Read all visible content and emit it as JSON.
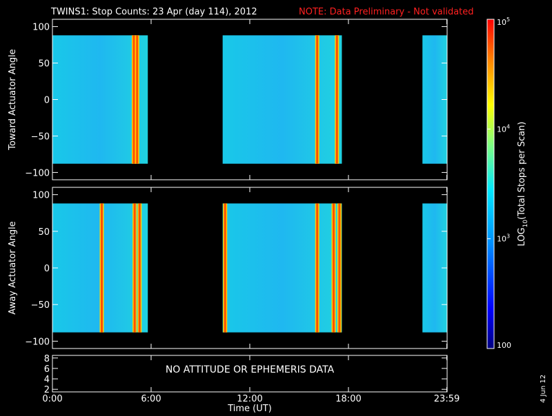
{
  "page": {
    "title": "TWINS1: Stop Counts: 23 Apr (day 114), 2012",
    "note": "NOTE: Data Preliminary - Not validated",
    "date_stamp": "4 Jun 12",
    "no_data_message": "NO ATTITUDE OR EPHEMERIS DATA"
  },
  "chart_data": [
    {
      "type": "heatmap",
      "panel": "toward",
      "ylabel": "Toward Actuator Angle",
      "ylim": [
        -110,
        110
      ],
      "yticks": [
        "100",
        "50",
        "0",
        "−50",
        "−100"
      ],
      "ytick_values": [
        100,
        50,
        0,
        -50,
        -100
      ],
      "data_y_range": [
        -88,
        88
      ],
      "data_segments_hours": [
        [
          0.0,
          5.8
        ],
        [
          10.35,
          17.6
        ],
        [
          22.5,
          24.0
        ]
      ],
      "high_count_bands_hours": [
        4.95,
        5.15,
        16.1,
        17.3
      ]
    },
    {
      "type": "heatmap",
      "panel": "away",
      "ylabel": "Away Actuator Angle",
      "ylim": [
        -110,
        110
      ],
      "yticks": [
        "100",
        "50",
        "0",
        "−50",
        "−100"
      ],
      "ytick_values": [
        100,
        50,
        0,
        -50,
        -100
      ],
      "data_y_range": [
        -88,
        88
      ],
      "data_segments_hours": [
        [
          0.0,
          5.8
        ],
        [
          10.35,
          17.6
        ],
        [
          22.5,
          24.0
        ]
      ],
      "high_count_bands_hours": [
        3.0,
        5.0,
        5.3,
        10.5,
        16.1,
        17.1,
        17.45
      ]
    },
    {
      "type": "line",
      "panel": "ephemeris",
      "ylim": [
        1.5,
        8.5
      ],
      "yticks": [
        "8",
        "6",
        "4",
        "2"
      ],
      "ytick_values": [
        8,
        6,
        4,
        2
      ]
    }
  ],
  "xaxis": {
    "xlabel": "Time (UT)",
    "xlim": [
      0,
      24
    ],
    "ticks": [
      "0:00",
      "6:00",
      "12:00",
      "18:00",
      "23:59"
    ],
    "tick_values": [
      0,
      6,
      12,
      18,
      23.98
    ]
  },
  "colorbar": {
    "label_prefix": "LOG",
    "label_sub": "10",
    "label_suffix": "(Total Stops per Scan)",
    "range": [
      100,
      100000
    ],
    "scale": "log",
    "ticks": [
      {
        "base": "10",
        "exp": "5",
        "value": 100000
      },
      {
        "base": "10",
        "exp": "4",
        "value": 10000
      },
      {
        "base": "10",
        "exp": "3",
        "value": 1000
      },
      {
        "base": "100",
        "exp": "",
        "value": 100
      }
    ]
  }
}
